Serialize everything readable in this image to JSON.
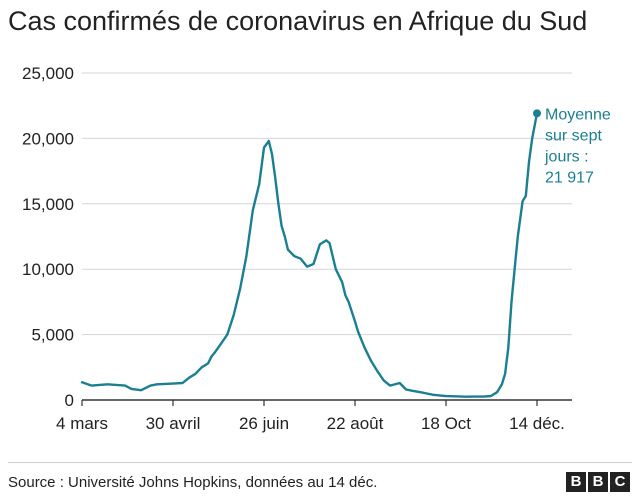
{
  "title": "Cas confirmés de coronavirus en Afrique du Sud",
  "source": "Source : Université Johns Hopkins, données au 14 déc.",
  "logo": {
    "letters": [
      "B",
      "B",
      "C"
    ]
  },
  "colors": {
    "line": "#1b7f94",
    "grid": "#d5d5d5",
    "axis": "#333333",
    "text": "#222222"
  },
  "chart_data": {
    "type": "line",
    "title": "Cas confirmés de coronavirus en Afrique du Sud",
    "xlabel": "",
    "ylabel": "",
    "xlim": [
      "2020-03-04",
      "2020-12-14"
    ],
    "ylim": [
      0,
      25000
    ],
    "yticks": [
      0,
      5000,
      10000,
      15000,
      20000,
      25000
    ],
    "ytick_labels": [
      "0",
      "5,000",
      "10,000",
      "15,000",
      "20,000",
      "25,000"
    ],
    "xticks": [
      {
        "date": "2020-03-04",
        "label": "4 mars"
      },
      {
        "date": "2020-04-30",
        "label": "30 avril"
      },
      {
        "date": "2020-06-26",
        "label": "26 juin"
      },
      {
        "date": "2020-08-22",
        "label": "22 août"
      },
      {
        "date": "2020-10-18",
        "label": "18 Oct"
      },
      {
        "date": "2020-12-14",
        "label": "14 déc."
      }
    ],
    "grid": true,
    "annotation": {
      "lines": [
        "Moyenne",
        "sur sept",
        "jours :",
        "21 917"
      ],
      "date": "2020-12-14",
      "value": 21917
    },
    "series": [
      {
        "x": [
          "2020-03-04",
          "2020-03-10",
          "2020-03-20",
          "2020-03-31",
          "2020-04-04",
          "2020-04-10",
          "2020-04-16",
          "2020-04-20",
          "2020-04-30",
          "2020-05-06",
          "2020-05-10",
          "2020-05-14",
          "2020-05-18",
          "2020-05-22",
          "2020-05-24",
          "2020-05-26",
          "2020-05-30",
          "2020-06-03",
          "2020-06-07",
          "2020-06-11",
          "2020-06-15",
          "2020-06-19",
          "2020-06-23",
          "2020-06-26",
          "2020-06-29",
          "2020-07-01",
          "2020-07-03",
          "2020-07-05",
          "2020-07-07",
          "2020-07-09",
          "2020-07-11",
          "2020-07-15",
          "2020-07-19",
          "2020-07-23",
          "2020-07-27",
          "2020-07-31",
          "2020-08-04",
          "2020-08-06",
          "2020-08-10",
          "2020-08-14",
          "2020-08-16",
          "2020-08-18",
          "2020-08-22",
          "2020-08-24",
          "2020-08-28",
          "2020-09-01",
          "2020-09-05",
          "2020-09-09",
          "2020-09-13",
          "2020-09-19",
          "2020-09-23",
          "2020-09-27",
          "2020-10-02",
          "2020-10-06",
          "2020-10-10",
          "2020-10-14",
          "2020-10-18",
          "2020-10-24",
          "2020-10-30",
          "2020-11-05",
          "2020-11-11",
          "2020-11-15",
          "2020-11-19",
          "2020-11-22",
          "2020-11-24",
          "2020-11-26",
          "2020-11-28",
          "2020-11-30",
          "2020-12-02",
          "2020-12-05",
          "2020-12-07",
          "2020-12-09",
          "2020-12-11",
          "2020-12-14"
        ],
        "values": [
          1350,
          1100,
          1200,
          1100,
          850,
          750,
          1100,
          1200,
          1250,
          1300,
          1700,
          2000,
          2500,
          2800,
          3300,
          3600,
          4300,
          5000,
          6500,
          8500,
          11000,
          14500,
          16500,
          19300,
          19800,
          18800,
          17000,
          15000,
          13300,
          12500,
          11500,
          11000,
          10800,
          10200,
          10400,
          11900,
          12200,
          12000,
          10000,
          9000,
          8000,
          7500,
          6000,
          5200,
          4000,
          3000,
          2200,
          1500,
          1100,
          1300,
          800,
          700,
          600,
          500,
          400,
          350,
          300,
          280,
          250,
          260,
          270,
          300,
          600,
          1200,
          2000,
          4000,
          7500,
          10000,
          12500,
          15200,
          15600,
          18200,
          20000,
          21917
        ]
      }
    ]
  }
}
